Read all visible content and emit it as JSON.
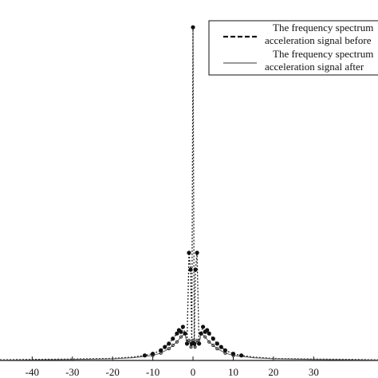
{
  "chart_data": {
    "type": "line",
    "title": "",
    "xlabel": "",
    "ylabel": "",
    "xlim": [
      -48,
      46
    ],
    "ylim": [
      0,
      1
    ],
    "x_ticks": [
      "-40",
      "-30",
      "-20",
      "-10",
      "0",
      "10",
      "20",
      "30"
    ],
    "x_tick_values": [
      -40,
      -30,
      -20,
      -10,
      0,
      10,
      20,
      30
    ],
    "grid": false,
    "legend_position": "top-right",
    "legend": [
      {
        "label_line1": "The frequency spectrum",
        "label_line2": "acceleration signal before",
        "style": "dashed"
      },
      {
        "label_line1": "The frequency spectrum",
        "label_line2": "acceleration signal after",
        "style": "solid"
      }
    ],
    "series": [
      {
        "style": "dashed",
        "color": "#222222",
        "x": [
          -48,
          -40,
          -30,
          -20,
          -15,
          -12,
          -10,
          -8,
          -7,
          -6,
          -5,
          -4,
          -3.5,
          -3,
          -2.5,
          -2,
          -1.5,
          -1,
          -0.6,
          -0.3,
          0,
          0.3,
          0.6,
          1,
          1.5,
          2,
          2.5,
          3,
          3.5,
          4,
          5,
          6,
          7,
          8,
          10,
          12,
          15,
          20,
          30,
          40,
          46
        ],
        "y": [
          0.002,
          0.003,
          0.004,
          0.006,
          0.01,
          0.015,
          0.02,
          0.03,
          0.04,
          0.05,
          0.065,
          0.08,
          0.09,
          0.085,
          0.1,
          0.08,
          0.05,
          0.32,
          0.27,
          0.05,
          0.99,
          0.05,
          0.27,
          0.32,
          0.05,
          0.08,
          0.1,
          0.085,
          0.09,
          0.08,
          0.065,
          0.05,
          0.04,
          0.03,
          0.02,
          0.015,
          0.01,
          0.006,
          0.004,
          0.003,
          0.002
        ]
      },
      {
        "style": "solid",
        "color": "#555555",
        "x": [
          -48,
          -40,
          -30,
          -20,
          -15,
          -10,
          -8,
          -6,
          -5,
          -4,
          -3,
          -2,
          -1.5,
          -1,
          -0.5,
          0,
          0.5,
          1,
          1.5,
          2,
          3,
          4,
          5,
          6,
          8,
          10,
          15,
          20,
          30,
          40,
          46
        ],
        "y": [
          0.001,
          0.002,
          0.003,
          0.005,
          0.008,
          0.015,
          0.022,
          0.035,
          0.045,
          0.055,
          0.07,
          0.08,
          0.05,
          0.06,
          0.04,
          0.06,
          0.04,
          0.06,
          0.05,
          0.08,
          0.07,
          0.055,
          0.045,
          0.035,
          0.022,
          0.015,
          0.008,
          0.005,
          0.003,
          0.002,
          0.001
        ]
      }
    ]
  }
}
